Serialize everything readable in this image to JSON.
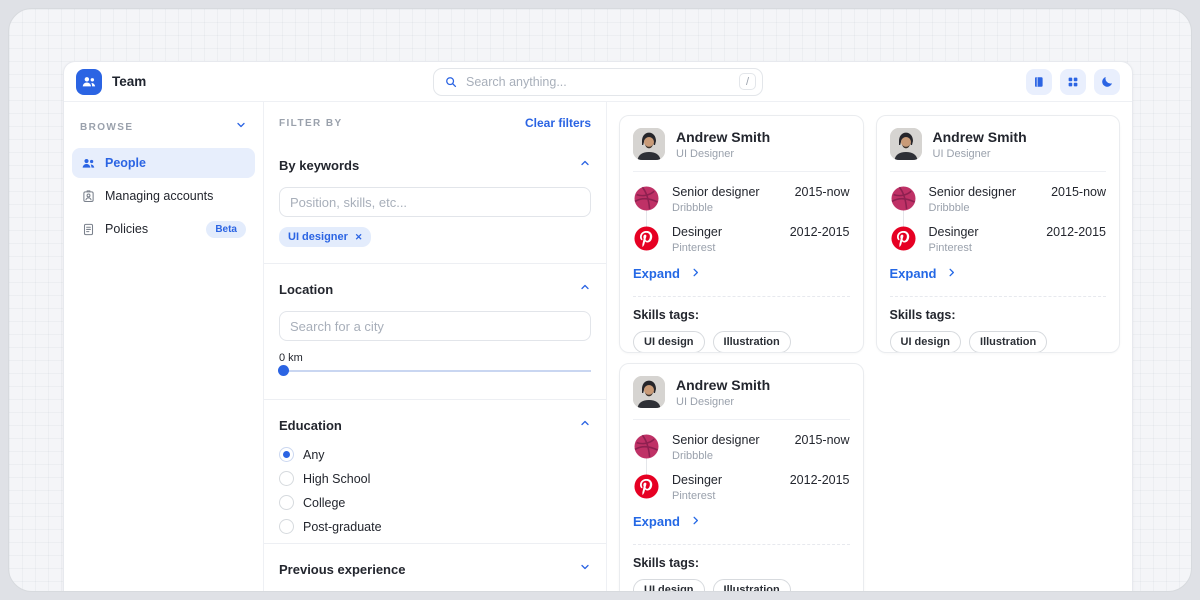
{
  "app": {
    "title": "Team"
  },
  "header": {
    "search_placeholder": "Search anything...",
    "search_shortcut": "/",
    "actions": [
      "book-icon",
      "grid-icon",
      "moon-icon"
    ]
  },
  "sidebar": {
    "section_label": "BROWSE",
    "items": [
      {
        "label": "People",
        "icon": "people-icon",
        "active": true
      },
      {
        "label": "Managing accounts",
        "icon": "accounts-icon",
        "active": false
      },
      {
        "label": "Policies",
        "icon": "policies-icon",
        "active": false,
        "badge": "Beta"
      }
    ]
  },
  "filters": {
    "title": "FILTER BY",
    "clear_label": "Clear filters",
    "keywords": {
      "label": "By keywords",
      "placeholder": "Position, skills, etc...",
      "tags": [
        "UI designer"
      ]
    },
    "location": {
      "label": "Location",
      "placeholder": "Search for a city",
      "distance_label": "0 km",
      "slider_value": 0
    },
    "education": {
      "label": "Education",
      "options": [
        "Any",
        "High School",
        "College",
        "Post-graduate"
      ],
      "selected": "Any"
    },
    "experience_section": {
      "label": "Previous experience"
    }
  },
  "cards": [
    {
      "name": "Andrew Smith",
      "role": "UI Designer",
      "experience": [
        {
          "title": "Senior designer",
          "company": "Dribbble",
          "period": "2015-now",
          "icon": "dribbble-icon"
        },
        {
          "title": "Desinger",
          "company": "Pinterest",
          "period": "2012-2015",
          "icon": "pinterest-icon"
        }
      ],
      "expand_label": "Expand",
      "skills_label": "Skills tags:",
      "skills": [
        "UI design",
        "Illustration"
      ]
    },
    {
      "name": "Andrew Smith",
      "role": "UI Designer",
      "experience": [
        {
          "title": "Senior designer",
          "company": "Dribbble",
          "period": "2015-now",
          "icon": "dribbble-icon"
        },
        {
          "title": "Desinger",
          "company": "Pinterest",
          "period": "2012-2015",
          "icon": "pinterest-icon"
        }
      ],
      "expand_label": "Expand",
      "skills_label": "Skills tags:",
      "skills": [
        "UI design",
        "Illustration"
      ]
    },
    {
      "name": "Andrew Smith",
      "role": "UI Designer",
      "experience": [
        {
          "title": "Senior designer",
          "company": "Dribbble",
          "period": "2015-now",
          "icon": "dribbble-icon"
        },
        {
          "title": "Desinger",
          "company": "Pinterest",
          "period": "2012-2015",
          "icon": "pinterest-icon"
        }
      ],
      "expand_label": "Expand",
      "skills_label": "Skills tags:",
      "skills": [
        "UI design",
        "Illustration"
      ]
    }
  ],
  "colors": {
    "accent": "#2b64e3",
    "accent_light": "#e7eefc",
    "dribbble": "#bf3166",
    "pinterest": "#e60023",
    "text_dark": "#23262e",
    "text_muted": "#9aa1ac"
  }
}
